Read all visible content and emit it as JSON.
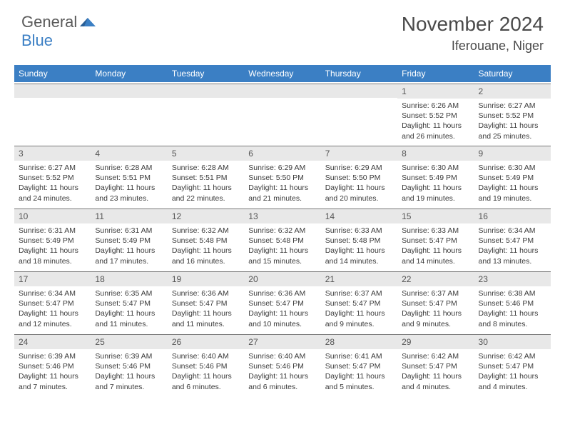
{
  "logo": {
    "text_general": "General",
    "text_blue": "Blue",
    "icon_color": "#3b7fc4"
  },
  "header": {
    "month_title": "November 2024",
    "location": "Iferouane, Niger"
  },
  "styling": {
    "header_bg": "#3b7fc4",
    "header_text": "#ffffff",
    "daynum_bg": "#e8e8e8",
    "daynum_border": "#7a7a7a",
    "body_text": "#3a3a3a",
    "page_bg": "#ffffff",
    "title_fontsize": 28,
    "location_fontsize": 18,
    "dayhead_fontsize": 12,
    "body_fontsize": 10.5
  },
  "calendar": {
    "day_names": [
      "Sunday",
      "Monday",
      "Tuesday",
      "Wednesday",
      "Thursday",
      "Friday",
      "Saturday"
    ],
    "weeks": [
      [
        {
          "num": "",
          "sunrise": "",
          "sunset": "",
          "daylight": ""
        },
        {
          "num": "",
          "sunrise": "",
          "sunset": "",
          "daylight": ""
        },
        {
          "num": "",
          "sunrise": "",
          "sunset": "",
          "daylight": ""
        },
        {
          "num": "",
          "sunrise": "",
          "sunset": "",
          "daylight": ""
        },
        {
          "num": "",
          "sunrise": "",
          "sunset": "",
          "daylight": ""
        },
        {
          "num": "1",
          "sunrise": "Sunrise: 6:26 AM",
          "sunset": "Sunset: 5:52 PM",
          "daylight": "Daylight: 11 hours and 26 minutes."
        },
        {
          "num": "2",
          "sunrise": "Sunrise: 6:27 AM",
          "sunset": "Sunset: 5:52 PM",
          "daylight": "Daylight: 11 hours and 25 minutes."
        }
      ],
      [
        {
          "num": "3",
          "sunrise": "Sunrise: 6:27 AM",
          "sunset": "Sunset: 5:52 PM",
          "daylight": "Daylight: 11 hours and 24 minutes."
        },
        {
          "num": "4",
          "sunrise": "Sunrise: 6:28 AM",
          "sunset": "Sunset: 5:51 PM",
          "daylight": "Daylight: 11 hours and 23 minutes."
        },
        {
          "num": "5",
          "sunrise": "Sunrise: 6:28 AM",
          "sunset": "Sunset: 5:51 PM",
          "daylight": "Daylight: 11 hours and 22 minutes."
        },
        {
          "num": "6",
          "sunrise": "Sunrise: 6:29 AM",
          "sunset": "Sunset: 5:50 PM",
          "daylight": "Daylight: 11 hours and 21 minutes."
        },
        {
          "num": "7",
          "sunrise": "Sunrise: 6:29 AM",
          "sunset": "Sunset: 5:50 PM",
          "daylight": "Daylight: 11 hours and 20 minutes."
        },
        {
          "num": "8",
          "sunrise": "Sunrise: 6:30 AM",
          "sunset": "Sunset: 5:49 PM",
          "daylight": "Daylight: 11 hours and 19 minutes."
        },
        {
          "num": "9",
          "sunrise": "Sunrise: 6:30 AM",
          "sunset": "Sunset: 5:49 PM",
          "daylight": "Daylight: 11 hours and 19 minutes."
        }
      ],
      [
        {
          "num": "10",
          "sunrise": "Sunrise: 6:31 AM",
          "sunset": "Sunset: 5:49 PM",
          "daylight": "Daylight: 11 hours and 18 minutes."
        },
        {
          "num": "11",
          "sunrise": "Sunrise: 6:31 AM",
          "sunset": "Sunset: 5:49 PM",
          "daylight": "Daylight: 11 hours and 17 minutes."
        },
        {
          "num": "12",
          "sunrise": "Sunrise: 6:32 AM",
          "sunset": "Sunset: 5:48 PM",
          "daylight": "Daylight: 11 hours and 16 minutes."
        },
        {
          "num": "13",
          "sunrise": "Sunrise: 6:32 AM",
          "sunset": "Sunset: 5:48 PM",
          "daylight": "Daylight: 11 hours and 15 minutes."
        },
        {
          "num": "14",
          "sunrise": "Sunrise: 6:33 AM",
          "sunset": "Sunset: 5:48 PM",
          "daylight": "Daylight: 11 hours and 14 minutes."
        },
        {
          "num": "15",
          "sunrise": "Sunrise: 6:33 AM",
          "sunset": "Sunset: 5:47 PM",
          "daylight": "Daylight: 11 hours and 14 minutes."
        },
        {
          "num": "16",
          "sunrise": "Sunrise: 6:34 AM",
          "sunset": "Sunset: 5:47 PM",
          "daylight": "Daylight: 11 hours and 13 minutes."
        }
      ],
      [
        {
          "num": "17",
          "sunrise": "Sunrise: 6:34 AM",
          "sunset": "Sunset: 5:47 PM",
          "daylight": "Daylight: 11 hours and 12 minutes."
        },
        {
          "num": "18",
          "sunrise": "Sunrise: 6:35 AM",
          "sunset": "Sunset: 5:47 PM",
          "daylight": "Daylight: 11 hours and 11 minutes."
        },
        {
          "num": "19",
          "sunrise": "Sunrise: 6:36 AM",
          "sunset": "Sunset: 5:47 PM",
          "daylight": "Daylight: 11 hours and 11 minutes."
        },
        {
          "num": "20",
          "sunrise": "Sunrise: 6:36 AM",
          "sunset": "Sunset: 5:47 PM",
          "daylight": "Daylight: 11 hours and 10 minutes."
        },
        {
          "num": "21",
          "sunrise": "Sunrise: 6:37 AM",
          "sunset": "Sunset: 5:47 PM",
          "daylight": "Daylight: 11 hours and 9 minutes."
        },
        {
          "num": "22",
          "sunrise": "Sunrise: 6:37 AM",
          "sunset": "Sunset: 5:47 PM",
          "daylight": "Daylight: 11 hours and 9 minutes."
        },
        {
          "num": "23",
          "sunrise": "Sunrise: 6:38 AM",
          "sunset": "Sunset: 5:46 PM",
          "daylight": "Daylight: 11 hours and 8 minutes."
        }
      ],
      [
        {
          "num": "24",
          "sunrise": "Sunrise: 6:39 AM",
          "sunset": "Sunset: 5:46 PM",
          "daylight": "Daylight: 11 hours and 7 minutes."
        },
        {
          "num": "25",
          "sunrise": "Sunrise: 6:39 AM",
          "sunset": "Sunset: 5:46 PM",
          "daylight": "Daylight: 11 hours and 7 minutes."
        },
        {
          "num": "26",
          "sunrise": "Sunrise: 6:40 AM",
          "sunset": "Sunset: 5:46 PM",
          "daylight": "Daylight: 11 hours and 6 minutes."
        },
        {
          "num": "27",
          "sunrise": "Sunrise: 6:40 AM",
          "sunset": "Sunset: 5:46 PM",
          "daylight": "Daylight: 11 hours and 6 minutes."
        },
        {
          "num": "28",
          "sunrise": "Sunrise: 6:41 AM",
          "sunset": "Sunset: 5:47 PM",
          "daylight": "Daylight: 11 hours and 5 minutes."
        },
        {
          "num": "29",
          "sunrise": "Sunrise: 6:42 AM",
          "sunset": "Sunset: 5:47 PM",
          "daylight": "Daylight: 11 hours and 4 minutes."
        },
        {
          "num": "30",
          "sunrise": "Sunrise: 6:42 AM",
          "sunset": "Sunset: 5:47 PM",
          "daylight": "Daylight: 11 hours and 4 minutes."
        }
      ]
    ]
  }
}
